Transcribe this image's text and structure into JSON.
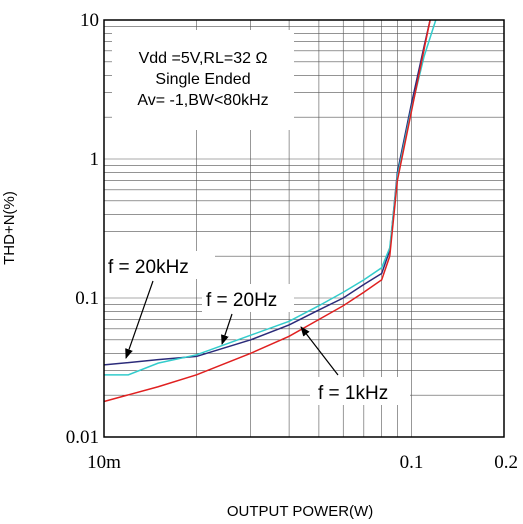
{
  "chart_data": {
    "type": "line",
    "xlabel": "OUTPUT POWER(W)",
    "ylabel": "THD+N(%)",
    "x_scale": "log",
    "y_scale": "log",
    "xlim": [
      0.01,
      0.2
    ],
    "ylim": [
      0.01,
      10
    ],
    "x_ticks": [
      {
        "value": 0.01,
        "label": "10m"
      },
      {
        "value": 0.1,
        "label": "0.1"
      },
      {
        "value": 0.2,
        "label": "0.2"
      }
    ],
    "y_ticks": [
      {
        "value": 0.01,
        "label": "0.01"
      },
      {
        "value": 0.1,
        "label": "0.1"
      },
      {
        "value": 1,
        "label": "1"
      },
      {
        "value": 10,
        "label": "10"
      }
    ],
    "grid": true,
    "conditions": [
      "Vdd =5V,RL=32 Ω",
      "Single Ended",
      "Av= -1,BW<80kHz"
    ],
    "series": [
      {
        "name": "f = 20kHz",
        "color": "#2b2b7a",
        "x": [
          0.01,
          0.015,
          0.02,
          0.03,
          0.04,
          0.05,
          0.06,
          0.07,
          0.08,
          0.085,
          0.09,
          0.1,
          0.11,
          0.115
        ],
        "y": [
          0.033,
          0.036,
          0.038,
          0.05,
          0.064,
          0.082,
          0.1,
          0.125,
          0.15,
          0.22,
          0.8,
          2.5,
          6.5,
          10
        ]
      },
      {
        "name": "f = 20Hz",
        "color": "#33cccc",
        "x": [
          0.01,
          0.012,
          0.015,
          0.02,
          0.03,
          0.04,
          0.05,
          0.06,
          0.07,
          0.08,
          0.085,
          0.09,
          0.1,
          0.11,
          0.12
        ],
        "y": [
          0.028,
          0.028,
          0.034,
          0.039,
          0.054,
          0.068,
          0.088,
          0.11,
          0.135,
          0.165,
          0.23,
          0.75,
          2.3,
          5.5,
          10
        ]
      },
      {
        "name": "f = 1kHz",
        "color": "#e02020",
        "x": [
          0.01,
          0.015,
          0.02,
          0.03,
          0.04,
          0.05,
          0.06,
          0.07,
          0.08,
          0.085,
          0.09,
          0.1,
          0.11,
          0.115
        ],
        "y": [
          0.018,
          0.023,
          0.028,
          0.04,
          0.053,
          0.07,
          0.088,
          0.11,
          0.135,
          0.2,
          0.7,
          2.2,
          6.2,
          10
        ]
      }
    ],
    "annotations": [
      {
        "text": "f = 20kHz",
        "series": 0,
        "x": 0.0115,
        "y": 0.035
      },
      {
        "text": "f = 20Hz",
        "series": 1,
        "x": 0.021,
        "y": 0.042
      },
      {
        "text": "f = 1kHz",
        "series": 2,
        "x": 0.047,
        "y": 0.062
      }
    ]
  }
}
